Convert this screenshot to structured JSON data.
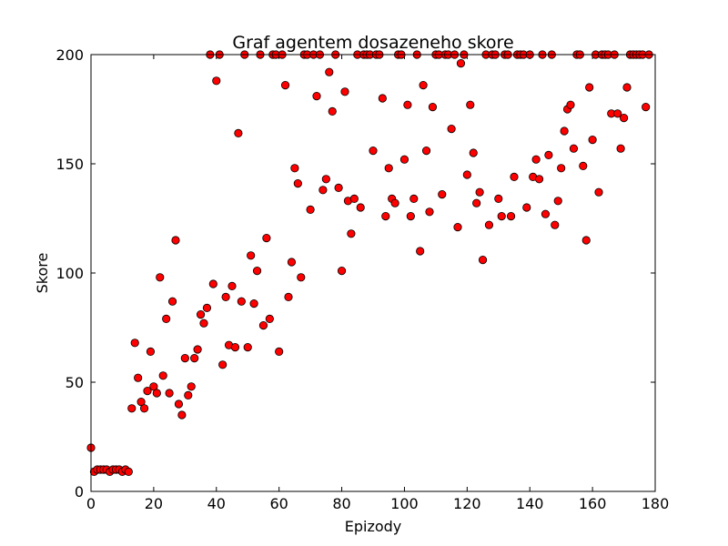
{
  "chart_data": {
    "type": "scatter",
    "title": "Graf agentem dosazeneho skore",
    "xlabel": "Epizody",
    "ylabel": "Skore",
    "xlim": [
      0,
      180
    ],
    "ylim": [
      0,
      200
    ],
    "xticks": [
      0,
      20,
      40,
      60,
      80,
      100,
      120,
      140,
      160,
      180
    ],
    "yticks": [
      0,
      50,
      100,
      150,
      200
    ],
    "xtick_labels": [
      "0",
      "20",
      "40",
      "60",
      "80",
      "100",
      "120",
      "140",
      "160",
      "180"
    ],
    "ytick_labels": [
      "0",
      "50",
      "100",
      "150",
      "200"
    ],
    "grid": false,
    "marker_color": "#ff0000",
    "marker_edge_color": "#000000",
    "points": [
      [
        0,
        20
      ],
      [
        1,
        9
      ],
      [
        2,
        10
      ],
      [
        3,
        10
      ],
      [
        4,
        10
      ],
      [
        5,
        10
      ],
      [
        6,
        9
      ],
      [
        7,
        10
      ],
      [
        8,
        10
      ],
      [
        9,
        10
      ],
      [
        10,
        9
      ],
      [
        11,
        10
      ],
      [
        12,
        9
      ],
      [
        13,
        38
      ],
      [
        14,
        68
      ],
      [
        15,
        52
      ],
      [
        16,
        41
      ],
      [
        17,
        38
      ],
      [
        18,
        46
      ],
      [
        19,
        64
      ],
      [
        20,
        48
      ],
      [
        21,
        45
      ],
      [
        22,
        98
      ],
      [
        23,
        53
      ],
      [
        24,
        79
      ],
      [
        25,
        45
      ],
      [
        26,
        87
      ],
      [
        27,
        115
      ],
      [
        28,
        40
      ],
      [
        29,
        35
      ],
      [
        30,
        61
      ],
      [
        31,
        44
      ],
      [
        32,
        48
      ],
      [
        33,
        61
      ],
      [
        34,
        65
      ],
      [
        35,
        81
      ],
      [
        36,
        77
      ],
      [
        37,
        84
      ],
      [
        38,
        200
      ],
      [
        39,
        95
      ],
      [
        40,
        188
      ],
      [
        41,
        200
      ],
      [
        42,
        58
      ],
      [
        43,
        89
      ],
      [
        44,
        67
      ],
      [
        45,
        94
      ],
      [
        46,
        66
      ],
      [
        47,
        164
      ],
      [
        48,
        87
      ],
      [
        49,
        200
      ],
      [
        50,
        66
      ],
      [
        51,
        108
      ],
      [
        52,
        86
      ],
      [
        53,
        101
      ],
      [
        54,
        200
      ],
      [
        55,
        76
      ],
      [
        56,
        116
      ],
      [
        57,
        79
      ],
      [
        58,
        200
      ],
      [
        59,
        200
      ],
      [
        60,
        64
      ],
      [
        61,
        200
      ],
      [
        62,
        186
      ],
      [
        63,
        89
      ],
      [
        64,
        105
      ],
      [
        65,
        148
      ],
      [
        66,
        141
      ],
      [
        67,
        98
      ],
      [
        68,
        200
      ],
      [
        69,
        200
      ],
      [
        70,
        129
      ],
      [
        71,
        200
      ],
      [
        72,
        181
      ],
      [
        73,
        200
      ],
      [
        74,
        138
      ],
      [
        75,
        143
      ],
      [
        76,
        192
      ],
      [
        77,
        174
      ],
      [
        78,
        200
      ],
      [
        79,
        139
      ],
      [
        80,
        101
      ],
      [
        81,
        183
      ],
      [
        82,
        133
      ],
      [
        83,
        118
      ],
      [
        84,
        134
      ],
      [
        85,
        200
      ],
      [
        86,
        130
      ],
      [
        87,
        200
      ],
      [
        88,
        200
      ],
      [
        89,
        200
      ],
      [
        90,
        156
      ],
      [
        91,
        200
      ],
      [
        92,
        200
      ],
      [
        93,
        180
      ],
      [
        94,
        126
      ],
      [
        95,
        148
      ],
      [
        96,
        134
      ],
      [
        97,
        132
      ],
      [
        98,
        200
      ],
      [
        99,
        200
      ],
      [
        100,
        152
      ],
      [
        101,
        177
      ],
      [
        102,
        126
      ],
      [
        103,
        134
      ],
      [
        104,
        200
      ],
      [
        105,
        110
      ],
      [
        106,
        186
      ],
      [
        107,
        156
      ],
      [
        108,
        128
      ],
      [
        109,
        176
      ],
      [
        110,
        200
      ],
      [
        111,
        200
      ],
      [
        112,
        136
      ],
      [
        113,
        200
      ],
      [
        114,
        200
      ],
      [
        115,
        166
      ],
      [
        116,
        200
      ],
      [
        117,
        121
      ],
      [
        118,
        196
      ],
      [
        119,
        200
      ],
      [
        120,
        145
      ],
      [
        121,
        177
      ],
      [
        122,
        155
      ],
      [
        123,
        132
      ],
      [
        124,
        137
      ],
      [
        125,
        106
      ],
      [
        126,
        200
      ],
      [
        127,
        122
      ],
      [
        128,
        200
      ],
      [
        129,
        200
      ],
      [
        130,
        134
      ],
      [
        131,
        126
      ],
      [
        132,
        200
      ],
      [
        133,
        200
      ],
      [
        134,
        126
      ],
      [
        135,
        144
      ],
      [
        136,
        200
      ],
      [
        137,
        200
      ],
      [
        138,
        200
      ],
      [
        139,
        130
      ],
      [
        140,
        200
      ],
      [
        141,
        144
      ],
      [
        142,
        152
      ],
      [
        143,
        143
      ],
      [
        144,
        200
      ],
      [
        145,
        127
      ],
      [
        146,
        154
      ],
      [
        147,
        200
      ],
      [
        148,
        122
      ],
      [
        149,
        133
      ],
      [
        150,
        148
      ],
      [
        151,
        165
      ],
      [
        152,
        175
      ],
      [
        153,
        177
      ],
      [
        154,
        157
      ],
      [
        155,
        200
      ],
      [
        156,
        200
      ],
      [
        157,
        149
      ],
      [
        158,
        115
      ],
      [
        159,
        185
      ],
      [
        160,
        161
      ],
      [
        161,
        200
      ],
      [
        162,
        137
      ],
      [
        163,
        200
      ],
      [
        164,
        200
      ],
      [
        165,
        200
      ],
      [
        166,
        173
      ],
      [
        167,
        200
      ],
      [
        168,
        173
      ],
      [
        169,
        157
      ],
      [
        170,
        171
      ],
      [
        171,
        185
      ],
      [
        172,
        200
      ],
      [
        173,
        200
      ],
      [
        174,
        200
      ],
      [
        175,
        200
      ],
      [
        176,
        200
      ],
      [
        177,
        176
      ],
      [
        178,
        200
      ]
    ]
  }
}
